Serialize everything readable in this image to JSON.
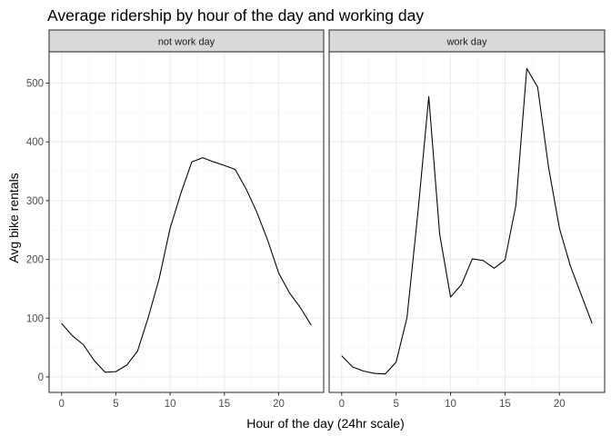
{
  "chart_data": {
    "type": "line",
    "title": "Average ridership by hour of the day and working day",
    "xlabel": "Hour of the day (24hr scale)",
    "ylabel": "Avg bike rentals",
    "xlim": [
      0,
      23
    ],
    "ylim": [
      0,
      527
    ],
    "x_ticks": [
      0,
      5,
      10,
      15,
      20
    ],
    "y_ticks": [
      0,
      100,
      200,
      300,
      400,
      500
    ],
    "grid": true,
    "facets": [
      {
        "label": "not work day",
        "x": [
          0,
          1,
          2,
          3,
          4,
          5,
          6,
          7,
          8,
          9,
          10,
          11,
          12,
          13,
          14,
          15,
          16,
          17,
          18,
          19,
          20,
          21,
          22,
          23
        ],
        "y": [
          91,
          70,
          55,
          28,
          8,
          9,
          20,
          44,
          102,
          168,
          253,
          313,
          366,
          373,
          366,
          360,
          353,
          320,
          280,
          232,
          177,
          143,
          118,
          88
        ]
      },
      {
        "label": "work day",
        "x": [
          0,
          1,
          2,
          3,
          4,
          5,
          6,
          7,
          8,
          9,
          10,
          11,
          12,
          13,
          14,
          15,
          16,
          17,
          18,
          19,
          20,
          21,
          22,
          23
        ],
        "y": [
          36,
          17,
          10,
          6,
          5,
          25,
          101,
          279,
          477,
          243,
          136,
          157,
          201,
          198,
          185,
          199,
          292,
          525,
          493,
          357,
          253,
          189,
          140,
          91
        ]
      }
    ]
  }
}
